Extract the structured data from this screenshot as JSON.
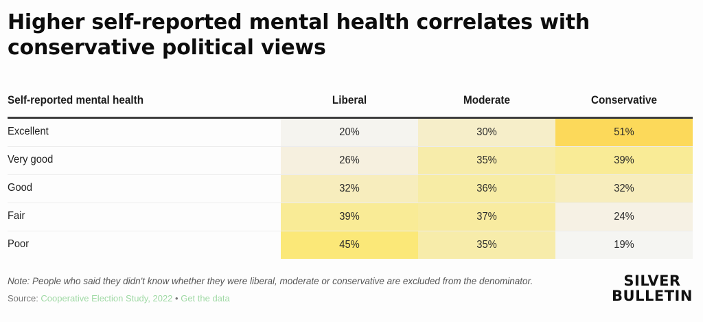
{
  "title": "Higher self-reported mental health correlates with conservative political views",
  "table": {
    "row_header": "Self-reported mental health",
    "columns": [
      "Liberal",
      "Moderate",
      "Conservative"
    ],
    "rows": [
      {
        "label": "Excellent",
        "values": [
          "20%",
          "30%",
          "51%"
        ]
      },
      {
        "label": "Very good",
        "values": [
          "26%",
          "35%",
          "39%"
        ]
      },
      {
        "label": "Good",
        "values": [
          "32%",
          "36%",
          "32%"
        ]
      },
      {
        "label": "Fair",
        "values": [
          "39%",
          "37%",
          "24%"
        ]
      },
      {
        "label": "Poor",
        "values": [
          "45%",
          "35%",
          "19%"
        ]
      }
    ]
  },
  "colors": {
    "scale_low": "#f5f5f2",
    "scale_high": "#fcd95a"
  },
  "chart_data": {
    "type": "heatmap",
    "title": "Higher self-reported mental health correlates with conservative political views",
    "xlabel": "",
    "ylabel": "Self-reported mental health",
    "x": [
      "Liberal",
      "Moderate",
      "Conservative"
    ],
    "y": [
      "Excellent",
      "Very good",
      "Good",
      "Fair",
      "Poor"
    ],
    "values": [
      [
        20,
        30,
        51
      ],
      [
        26,
        35,
        39
      ],
      [
        32,
        36,
        32
      ],
      [
        39,
        37,
        24
      ],
      [
        45,
        35,
        19
      ]
    ],
    "unit": "%",
    "range": [
      19,
      51
    ]
  },
  "footer": {
    "note": "Note: People who said they didn't know whether they were liberal, moderate or conservative are excluded from the denominator.",
    "source_label": "Source: ",
    "source_link": "Cooperative Election Study, 2022",
    "separator": " • ",
    "data_link": "Get the data"
  },
  "logo": {
    "line1": "SILVER",
    "line2": "BULLETIN"
  }
}
